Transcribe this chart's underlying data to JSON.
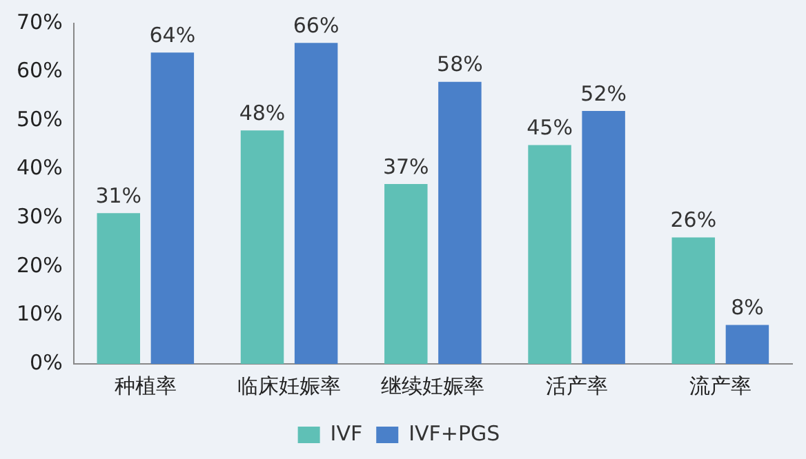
{
  "chart_data": {
    "type": "bar",
    "categories": [
      "种植率",
      "临床妊娠率",
      "继续妊娠率",
      "活产率",
      "流产率"
    ],
    "series": [
      {
        "name": "IVF",
        "color": "#5fc0b6",
        "values": [
          31,
          48,
          37,
          45,
          26
        ],
        "value_labels": [
          "31%",
          "48%",
          "37%",
          "45%",
          "26%"
        ]
      },
      {
        "name": "IVF+PGS",
        "color": "#4a80c9",
        "values": [
          64,
          66,
          58,
          52,
          8
        ],
        "value_labels": [
          "64%",
          "66%",
          "58%",
          "52%",
          "8%"
        ]
      }
    ],
    "ylim": [
      0,
      70
    ],
    "yticks": [
      {
        "value": 0,
        "label": "0%"
      },
      {
        "value": 10,
        "label": "10%"
      },
      {
        "value": 20,
        "label": "20%"
      },
      {
        "value": 30,
        "label": "30%"
      },
      {
        "value": 40,
        "label": "40%"
      },
      {
        "value": 50,
        "label": "50%"
      },
      {
        "value": 60,
        "label": "60%"
      },
      {
        "value": 70,
        "label": "70%"
      }
    ],
    "grid": false,
    "legend": "bottom"
  }
}
